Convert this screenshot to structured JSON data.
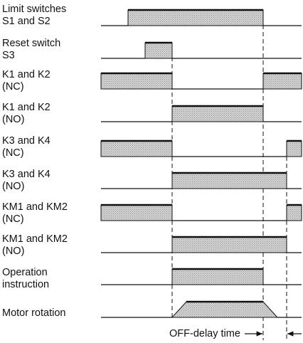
{
  "signals": [
    {
      "label": [
        "Limit switches",
        "S1 and S2"
      ],
      "waveform": "pulse-s1s2"
    },
    {
      "label": [
        "Reset switch",
        "S3"
      ],
      "waveform": "pulse-s3"
    },
    {
      "label": [
        "K1 and K2",
        "(NC)"
      ],
      "waveform": "nc-k1k2"
    },
    {
      "label": [
        "K1 and K2",
        "(NO)"
      ],
      "waveform": "no-k1k2"
    },
    {
      "label": [
        "K3 and K4",
        "(NC)"
      ],
      "waveform": "nc-k3k4"
    },
    {
      "label": [
        "K3 and K4",
        "(NO)"
      ],
      "waveform": "no-k3k4"
    },
    {
      "label": [
        "KM1 and KM2",
        "(NC)"
      ],
      "waveform": "nc-km"
    },
    {
      "label": [
        "KM1 and KM2",
        "(NO)"
      ],
      "waveform": "no-km"
    },
    {
      "label": [
        "Operation",
        "instruction"
      ],
      "waveform": "operation"
    },
    {
      "label": [
        "Motor rotation"
      ],
      "waveform": "motor-trapezoid"
    }
  ],
  "timing": {
    "off_delay_label": "OFF-delay time"
  },
  "colors": {
    "line": "#111111",
    "fill": "#c8c8c8"
  }
}
